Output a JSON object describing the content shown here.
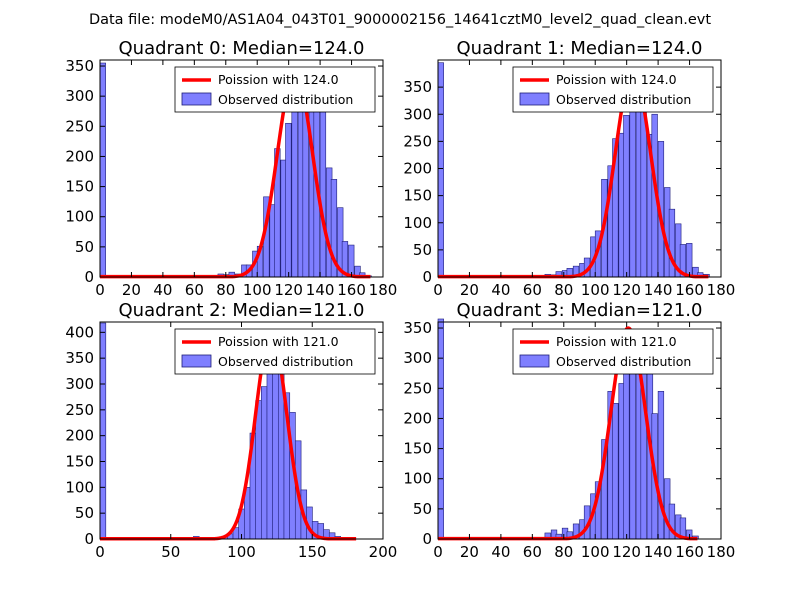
{
  "figure_title": "Data file: modeM0/AS1A04_043T01_9000002156_14641cztM0_level2_quad_clean.evt",
  "colors": {
    "bar_fill": "#7f7fff",
    "bar_edge": "#1e1e78",
    "curve": "#ff0000"
  },
  "chart_data": [
    {
      "type": "bar",
      "title": "Quadrant 0: Median=124.0",
      "xlim": [
        0,
        180
      ],
      "ylim": [
        0,
        360
      ],
      "xticks": [
        0,
        20,
        40,
        60,
        80,
        100,
        120,
        140,
        160,
        180
      ],
      "yticks": [
        0,
        50,
        100,
        150,
        200,
        250,
        300,
        350
      ],
      "bin_width": 3.6,
      "bins": [
        [
          0,
          355
        ],
        [
          72,
          2
        ],
        [
          75,
          5
        ],
        [
          79,
          4
        ],
        [
          82,
          8
        ],
        [
          86,
          5
        ],
        [
          90,
          20
        ],
        [
          93,
          20
        ],
        [
          97,
          43
        ],
        [
          100,
          51
        ],
        [
          104,
          133
        ],
        [
          108,
          120
        ],
        [
          111,
          213
        ],
        [
          115,
          194
        ],
        [
          118,
          255
        ],
        [
          122,
          282
        ],
        [
          126,
          276
        ],
        [
          129,
          338
        ],
        [
          133,
          316
        ],
        [
          136,
          279
        ],
        [
          140,
          293
        ],
        [
          144,
          181
        ],
        [
          147,
          162
        ],
        [
          151,
          115
        ],
        [
          154,
          59
        ],
        [
          158,
          53
        ],
        [
          162,
          18
        ],
        [
          165,
          7
        ],
        [
          169,
          2
        ]
      ],
      "legend": [
        "Poission with 124.0",
        "Observed distribution"
      ],
      "poisson_mean": 124.0,
      "curve_peak": 340,
      "curve_x": [
        0,
        172
      ]
    },
    {
      "type": "bar",
      "title": "Quadrant 1: Median=124.0",
      "xlim": [
        0,
        180
      ],
      "ylim": [
        0,
        400
      ],
      "xticks": [
        0,
        20,
        40,
        60,
        80,
        100,
        120,
        140,
        160,
        180
      ],
      "yticks": [
        0,
        50,
        100,
        150,
        200,
        250,
        300,
        350
      ],
      "bin_width": 3.6,
      "bins": [
        [
          0,
          395
        ],
        [
          68,
          5
        ],
        [
          72,
          4
        ],
        [
          75,
          10
        ],
        [
          79,
          12
        ],
        [
          82,
          16
        ],
        [
          86,
          20
        ],
        [
          90,
          25
        ],
        [
          93,
          35
        ],
        [
          97,
          74
        ],
        [
          100,
          85
        ],
        [
          104,
          180
        ],
        [
          108,
          205
        ],
        [
          111,
          255
        ],
        [
          115,
          265
        ],
        [
          118,
          298
        ],
        [
          122,
          383
        ],
        [
          126,
          355
        ],
        [
          129,
          328
        ],
        [
          133,
          263
        ],
        [
          136,
          300
        ],
        [
          140,
          250
        ],
        [
          144,
          165
        ],
        [
          147,
          125
        ],
        [
          151,
          98
        ],
        [
          154,
          60
        ],
        [
          158,
          62
        ],
        [
          162,
          18
        ],
        [
          165,
          8
        ],
        [
          169,
          5
        ]
      ],
      "legend": [
        "Poission with 124.0",
        "Observed distribution"
      ],
      "poisson_mean": 124.0,
      "curve_peak": 380,
      "curve_x": [
        0,
        172
      ]
    },
    {
      "type": "bar",
      "title": "Quadrant 2: Median=121.0",
      "xlim": [
        0,
        200
      ],
      "ylim": [
        0,
        420
      ],
      "xticks": [
        0,
        50,
        100,
        150,
        200
      ],
      "yticks": [
        0,
        50,
        100,
        150,
        200,
        250,
        300,
        350,
        400
      ],
      "bin_width": 4.1,
      "bins": [
        [
          0,
          418
        ],
        [
          66,
          5
        ],
        [
          70,
          3
        ],
        [
          86,
          5
        ],
        [
          90,
          10
        ],
        [
          94,
          22
        ],
        [
          98,
          58
        ],
        [
          102,
          100
        ],
        [
          106,
          205
        ],
        [
          110,
          268
        ],
        [
          114,
          295
        ],
        [
          118,
          340
        ],
        [
          122,
          395
        ],
        [
          126,
          358
        ],
        [
          130,
          283
        ],
        [
          134,
          245
        ],
        [
          138,
          190
        ],
        [
          142,
          95
        ],
        [
          146,
          62
        ],
        [
          150,
          34
        ],
        [
          154,
          30
        ],
        [
          158,
          18
        ],
        [
          162,
          12
        ],
        [
          166,
          5
        ]
      ],
      "legend": [
        "Poission with 121.0",
        "Observed distribution"
      ],
      "poisson_mean": 121.0,
      "curve_peak": 400,
      "curve_x": [
        0,
        181
      ]
    },
    {
      "type": "bar",
      "title": "Quadrant 3: Median=121.0",
      "xlim": [
        0,
        180
      ],
      "ylim": [
        0,
        360
      ],
      "xticks": [
        0,
        20,
        40,
        60,
        80,
        100,
        120,
        140,
        160,
        180
      ],
      "yticks": [
        0,
        50,
        100,
        150,
        200,
        250,
        300,
        350
      ],
      "bin_width": 3.6,
      "bins": [
        [
          0,
          365
        ],
        [
          68,
          10
        ],
        [
          72,
          15
        ],
        [
          75,
          8
        ],
        [
          79,
          18
        ],
        [
          82,
          12
        ],
        [
          86,
          25
        ],
        [
          90,
          32
        ],
        [
          93,
          55
        ],
        [
          97,
          75
        ],
        [
          100,
          95
        ],
        [
          104,
          165
        ],
        [
          108,
          245
        ],
        [
          111,
          225
        ],
        [
          115,
          258
        ],
        [
          118,
          348
        ],
        [
          122,
          330
        ],
        [
          126,
          280
        ],
        [
          129,
          285
        ],
        [
          133,
          312
        ],
        [
          136,
          208
        ],
        [
          140,
          245
        ],
        [
          144,
          100
        ],
        [
          147,
          58
        ],
        [
          151,
          40
        ],
        [
          154,
          35
        ],
        [
          158,
          15
        ],
        [
          162,
          5
        ]
      ],
      "legend": [
        "Poission with 121.0",
        "Observed distribution"
      ],
      "poisson_mean": 121.0,
      "curve_peak": 350,
      "curve_x": [
        0,
        165
      ]
    }
  ]
}
